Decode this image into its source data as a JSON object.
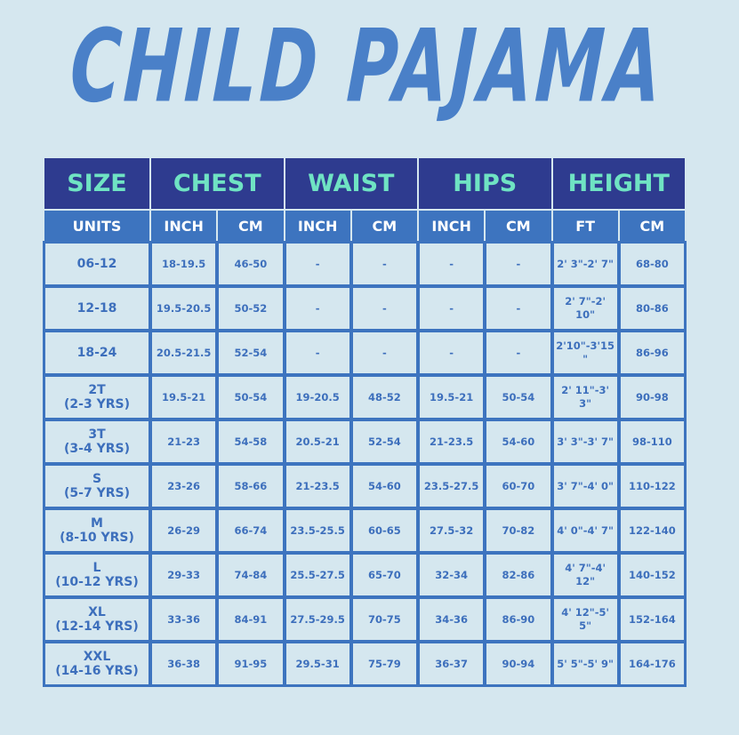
{
  "title": "CHILD PAJAMA",
  "header": {
    "groups": [
      "SIZE",
      "CHEST",
      "WAIST",
      "HIPS",
      "HEIGHT"
    ],
    "units": [
      "UNITS",
      "INCH",
      "CM",
      "INCH",
      "CM",
      "INCH",
      "CM",
      "FT",
      "CM"
    ]
  },
  "rows": [
    {
      "size": "06-12",
      "sub": "",
      "cells": [
        "18-19.5",
        "46-50",
        "-",
        "-",
        "-",
        "-",
        "2' 3\"-2' 7\"",
        "68-80"
      ]
    },
    {
      "size": "12-18",
      "sub": "",
      "cells": [
        "19.5-20.5",
        "50-52",
        "-",
        "-",
        "-",
        "-",
        "2' 7\"-2' 10\"",
        "80-86"
      ]
    },
    {
      "size": "18-24",
      "sub": "",
      "cells": [
        "20.5-21.5",
        "52-54",
        "-",
        "-",
        "-",
        "-",
        "2'10\"-3'15\"",
        "86-96"
      ]
    },
    {
      "size": "2T",
      "sub": "(2-3 YRS)",
      "cells": [
        "19.5-21",
        "50-54",
        "19-20.5",
        "48-52",
        "19.5-21",
        "50-54",
        "2' 11\"-3' 3\"",
        "90-98"
      ]
    },
    {
      "size": "3T",
      "sub": "(3-4 YRS)",
      "cells": [
        "21-23",
        "54-58",
        "20.5-21",
        "52-54",
        "21-23.5",
        "54-60",
        "3' 3\"-3' 7\"",
        "98-110"
      ]
    },
    {
      "size": "S",
      "sub": "(5-7 YRS)",
      "cells": [
        "23-26",
        "58-66",
        "21-23.5",
        "54-60",
        "23.5-27.5",
        "60-70",
        "3' 7\"-4' 0\"",
        "110-122"
      ]
    },
    {
      "size": "M",
      "sub": "(8-10 YRS)",
      "cells": [
        "26-29",
        "66-74",
        "23.5-25.5",
        "60-65",
        "27.5-32",
        "70-82",
        "4' 0\"-4' 7\"",
        "122-140"
      ]
    },
    {
      "size": "L",
      "sub": "(10-12 YRS)",
      "cells": [
        "29-33",
        "74-84",
        "25.5-27.5",
        "65-70",
        "32-34",
        "82-86",
        "4' 7\"-4' 12\"",
        "140-152"
      ]
    },
    {
      "size": "XL",
      "sub": "(12-14 YRS)",
      "cells": [
        "33-36",
        "84-91",
        "27.5-29.5",
        "70-75",
        "34-36",
        "86-90",
        "4' 12\"-5' 5\"",
        "152-164"
      ]
    },
    {
      "size": "XXL",
      "sub": "(14-16 YRS)",
      "cells": [
        "36-38",
        "91-95",
        "29.5-31",
        "75-79",
        "36-37",
        "90-94",
        "5' 5\"-5' 9\"",
        "164-176"
      ]
    }
  ],
  "colors": {
    "header": "#2e3b8f",
    "header_text": "#6fe3c3",
    "subheader": "#3d74bf",
    "border": "#3d74bf",
    "text": "#3d6fbc",
    "background": "#d5e7ef",
    "title": "#4a80c8"
  }
}
